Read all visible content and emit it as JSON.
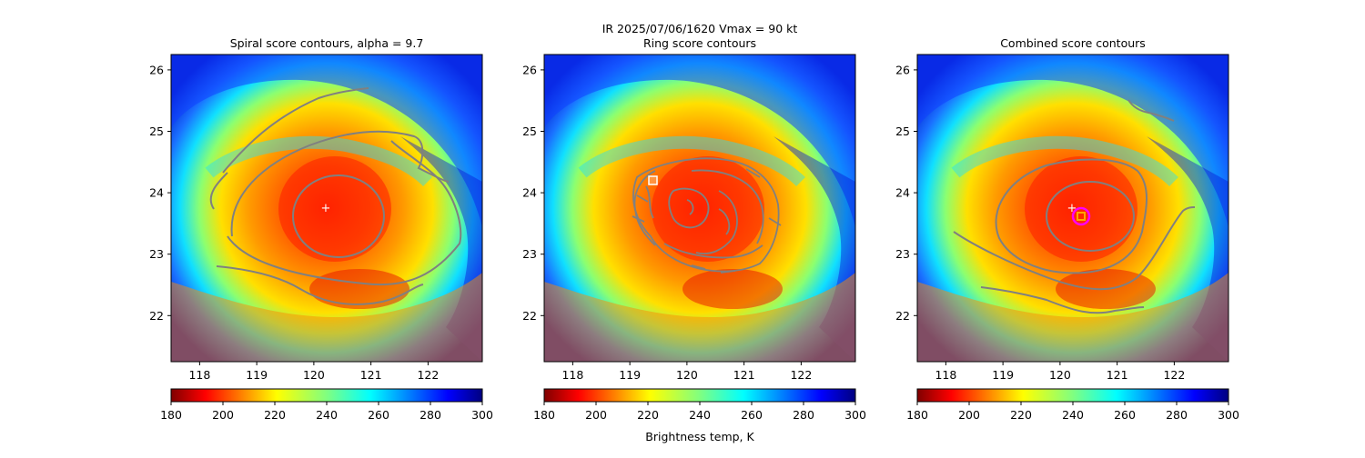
{
  "suptitle": "IR  2025/07/06/1620    Vmax = 90 kt",
  "colorbar_label": "Brightness temp, K",
  "chart_data": [
    {
      "type": "heatmap",
      "title": "Spiral score contours, alpha =  9.7",
      "xlim": [
        117.5,
        122.95
      ],
      "ylim": [
        21.25,
        26.25
      ],
      "x_ticks": [
        "118",
        "119",
        "120",
        "121",
        "122"
      ],
      "y_ticks": [
        "22",
        "23",
        "24",
        "25",
        "26"
      ],
      "contour_color": "#808080",
      "center_marker": {
        "x": 120.2,
        "y": 23.75,
        "symbol": "+",
        "color": "#ffffff"
      },
      "colorbar": {
        "range": [
          180,
          300
        ],
        "ticks": [
          "180",
          "200",
          "220",
          "240",
          "260",
          "280",
          "300"
        ],
        "colormap": "jet_r"
      }
    },
    {
      "type": "heatmap",
      "title": "Ring score contours",
      "xlim": [
        117.5,
        122.95
      ],
      "ylim": [
        21.25,
        26.25
      ],
      "x_ticks": [
        "118",
        "119",
        "120",
        "121",
        "122"
      ],
      "y_ticks": [
        "22",
        "23",
        "24",
        "25",
        "26"
      ],
      "contour_color": "#808080",
      "center_marker": {
        "x": 119.4,
        "y": 24.2,
        "symbol": "square",
        "color": "#ffffff"
      },
      "colorbar": {
        "range": [
          180,
          300
        ],
        "ticks": [
          "180",
          "200",
          "220",
          "240",
          "260",
          "280",
          "300"
        ],
        "colormap": "jet_r"
      }
    },
    {
      "type": "heatmap",
      "title": "Combined score contours",
      "xlim": [
        117.5,
        122.95
      ],
      "ylim": [
        21.25,
        26.25
      ],
      "x_ticks": [
        "118",
        "119",
        "120",
        "121",
        "122"
      ],
      "y_ticks": [
        "22",
        "23",
        "24",
        "25",
        "26"
      ],
      "contour_color": "#808080",
      "center_marker": {
        "x": 120.15,
        "y": 23.75,
        "symbol": "+",
        "color": "#ffffff"
      },
      "combined_marker": {
        "x": 120.35,
        "y": 23.6,
        "symbol": "square",
        "color": "#ffa500",
        "ring_color": "#ff00ff"
      },
      "colorbar": {
        "range": [
          180,
          300
        ],
        "ticks": [
          "180",
          "200",
          "220",
          "240",
          "260",
          "280",
          "300"
        ],
        "colormap": "jet_r"
      }
    }
  ]
}
